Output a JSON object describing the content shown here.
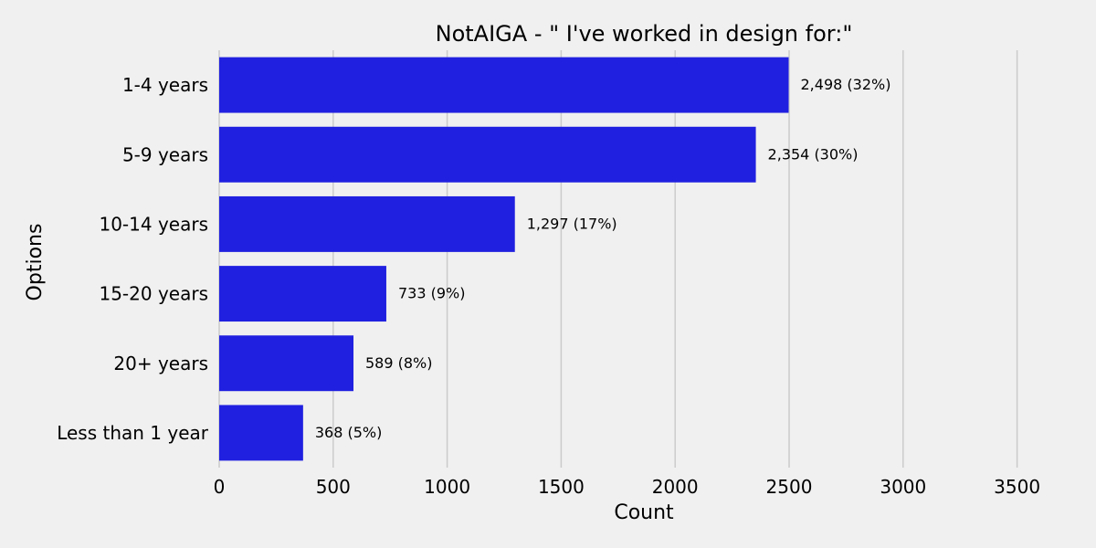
{
  "chart_data": {
    "type": "bar",
    "orientation": "horizontal",
    "title": "NotAIGA - \" I've worked in design for:\"",
    "xlabel": "Count",
    "ylabel": "Options",
    "categories": [
      "1-4 years",
      "5-9 years",
      "10-14 years",
      "15-20 years",
      "20+ years",
      "Less than 1 year"
    ],
    "values": [
      2498,
      2354,
      1297,
      733,
      589,
      368
    ],
    "data_labels": [
      "2,498 (32%)",
      "2,354 (30%)",
      "1,297 (17%)",
      "733 (9%)",
      "589 (8%)",
      "368 (5%)"
    ],
    "xlim": [
      0,
      3750
    ],
    "xticks": [
      0,
      500,
      1000,
      1500,
      2000,
      2500,
      3000,
      3500
    ],
    "xtick_labels": [
      "0",
      "500",
      "1000",
      "1500",
      "2000",
      "2500",
      "3000",
      "3500"
    ],
    "grid": "vertical",
    "legend": "none",
    "bar_color": "#2020e0",
    "background_color": "#f0f0f0"
  }
}
